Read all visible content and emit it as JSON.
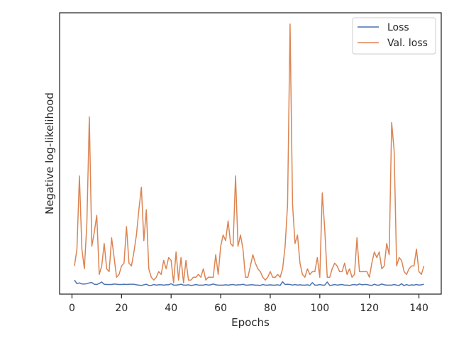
{
  "chart_data": {
    "type": "line",
    "title": "",
    "xlabel": "Epochs",
    "ylabel": "Negative log-likelihood",
    "xlim": [
      -5,
      149
    ],
    "ylim": [
      0,
      1
    ],
    "x_ticks": [
      0,
      20,
      40,
      60,
      80,
      100,
      120,
      140
    ],
    "y_ticks": [],
    "grid": false,
    "legend_position": "top-right",
    "series": [
      {
        "name": "Loss",
        "color": "#4c72b0",
        "x": [
          1,
          2,
          3,
          4,
          5,
          6,
          7,
          8,
          9,
          10,
          11,
          12,
          13,
          14,
          15,
          16,
          17,
          18,
          19,
          20,
          21,
          22,
          23,
          24,
          25,
          26,
          27,
          28,
          29,
          30,
          31,
          32,
          33,
          34,
          35,
          36,
          37,
          38,
          39,
          40,
          41,
          42,
          43,
          44,
          45,
          46,
          47,
          48,
          49,
          50,
          51,
          52,
          53,
          54,
          55,
          56,
          57,
          58,
          59,
          60,
          61,
          62,
          63,
          64,
          65,
          66,
          67,
          68,
          69,
          70,
          71,
          72,
          73,
          74,
          75,
          76,
          77,
          78,
          79,
          80,
          81,
          82,
          83,
          84,
          85,
          86,
          87,
          88,
          89,
          90,
          91,
          92,
          93,
          94,
          95,
          96,
          97,
          98,
          99,
          100,
          101,
          102,
          103,
          104,
          105,
          106,
          107,
          108,
          109,
          110,
          111,
          112,
          113,
          114,
          115,
          116,
          117,
          118,
          119,
          120,
          121,
          122,
          123,
          124,
          125,
          126,
          127,
          128,
          129,
          130,
          131,
          132,
          133,
          134,
          135,
          136,
          137,
          138,
          139,
          140,
          141,
          142
        ],
        "values": [
          0.05,
          0.037,
          0.04,
          0.036,
          0.036,
          0.037,
          0.04,
          0.041,
          0.035,
          0.034,
          0.038,
          0.043,
          0.035,
          0.034,
          0.034,
          0.034,
          0.036,
          0.035,
          0.034,
          0.034,
          0.035,
          0.034,
          0.035,
          0.035,
          0.035,
          0.033,
          0.032,
          0.031,
          0.033,
          0.035,
          0.031,
          0.031,
          0.034,
          0.032,
          0.033,
          0.033,
          0.032,
          0.033,
          0.033,
          0.037,
          0.032,
          0.032,
          0.033,
          0.035,
          0.032,
          0.032,
          0.033,
          0.031,
          0.032,
          0.034,
          0.032,
          0.032,
          0.032,
          0.034,
          0.032,
          0.033,
          0.036,
          0.033,
          0.032,
          0.032,
          0.032,
          0.033,
          0.032,
          0.033,
          0.034,
          0.032,
          0.033,
          0.033,
          0.035,
          0.032,
          0.032,
          0.033,
          0.033,
          0.032,
          0.032,
          0.031,
          0.034,
          0.032,
          0.032,
          0.033,
          0.032,
          0.032,
          0.033,
          0.031,
          0.044,
          0.034,
          0.035,
          0.034,
          0.032,
          0.034,
          0.032,
          0.033,
          0.032,
          0.032,
          0.033,
          0.031,
          0.041,
          0.032,
          0.032,
          0.034,
          0.032,
          0.032,
          0.043,
          0.031,
          0.032,
          0.034,
          0.032,
          0.033,
          0.034,
          0.032,
          0.032,
          0.031,
          0.033,
          0.034,
          0.032,
          0.036,
          0.033,
          0.034,
          0.034,
          0.032,
          0.031,
          0.035,
          0.032,
          0.032,
          0.036,
          0.033,
          0.032,
          0.032,
          0.032,
          0.034,
          0.032,
          0.031,
          0.037,
          0.03,
          0.034,
          0.031,
          0.033,
          0.032,
          0.034,
          0.032,
          0.033,
          0.035
        ]
      },
      {
        "name": "Val. loss",
        "color": "#dd8452",
        "x": [
          1,
          2,
          3,
          4,
          5,
          6,
          7,
          8,
          9,
          10,
          11,
          12,
          13,
          14,
          15,
          16,
          17,
          18,
          19,
          20,
          21,
          22,
          23,
          24,
          25,
          26,
          27,
          28,
          29,
          30,
          31,
          32,
          33,
          34,
          35,
          36,
          37,
          38,
          39,
          40,
          41,
          42,
          43,
          44,
          45,
          46,
          47,
          48,
          49,
          50,
          51,
          52,
          53,
          54,
          55,
          56,
          57,
          58,
          59,
          60,
          61,
          62,
          63,
          64,
          65,
          66,
          67,
          68,
          69,
          70,
          71,
          72,
          73,
          74,
          75,
          76,
          77,
          78,
          79,
          80,
          81,
          82,
          83,
          84,
          85,
          86,
          87,
          88,
          89,
          90,
          91,
          92,
          93,
          94,
          95,
          96,
          97,
          98,
          99,
          100,
          101,
          102,
          103,
          104,
          105,
          106,
          107,
          108,
          109,
          110,
          111,
          112,
          113,
          114,
          115,
          116,
          117,
          118,
          119,
          120,
          121,
          122,
          123,
          124,
          125,
          126,
          127,
          128,
          129,
          130,
          131,
          132,
          133,
          134,
          135,
          136,
          137,
          138,
          139,
          140,
          141,
          142
        ],
        "values": [
          0.1,
          0.16,
          0.42,
          0.16,
          0.09,
          0.25,
          0.63,
          0.17,
          0.22,
          0.28,
          0.07,
          0.1,
          0.18,
          0.09,
          0.08,
          0.2,
          0.13,
          0.06,
          0.07,
          0.1,
          0.11,
          0.24,
          0.11,
          0.1,
          0.15,
          0.21,
          0.3,
          0.38,
          0.19,
          0.3,
          0.09,
          0.06,
          0.05,
          0.06,
          0.08,
          0.07,
          0.12,
          0.09,
          0.13,
          0.12,
          0.04,
          0.15,
          0.05,
          0.13,
          0.04,
          0.12,
          0.05,
          0.05,
          0.06,
          0.06,
          0.07,
          0.06,
          0.09,
          0.05,
          0.06,
          0.06,
          0.06,
          0.14,
          0.07,
          0.17,
          0.21,
          0.19,
          0.26,
          0.18,
          0.17,
          0.42,
          0.17,
          0.21,
          0.16,
          0.06,
          0.06,
          0.1,
          0.14,
          0.11,
          0.09,
          0.08,
          0.06,
          0.05,
          0.06,
          0.08,
          0.06,
          0.06,
          0.07,
          0.06,
          0.09,
          0.17,
          0.32,
          0.96,
          0.32,
          0.18,
          0.21,
          0.11,
          0.07,
          0.06,
          0.09,
          0.07,
          0.08,
          0.08,
          0.13,
          0.06,
          0.36,
          0.23,
          0.06,
          0.06,
          0.09,
          0.11,
          0.1,
          0.08,
          0.08,
          0.11,
          0.07,
          0.09,
          0.06,
          0.07,
          0.2,
          0.08,
          0.08,
          0.08,
          0.08,
          0.06,
          0.11,
          0.15,
          0.13,
          0.15,
          0.09,
          0.1,
          0.18,
          0.14,
          0.61,
          0.51,
          0.1,
          0.13,
          0.12,
          0.08,
          0.07,
          0.09,
          0.1,
          0.1,
          0.16,
          0.08,
          0.07,
          0.1
        ]
      }
    ]
  }
}
